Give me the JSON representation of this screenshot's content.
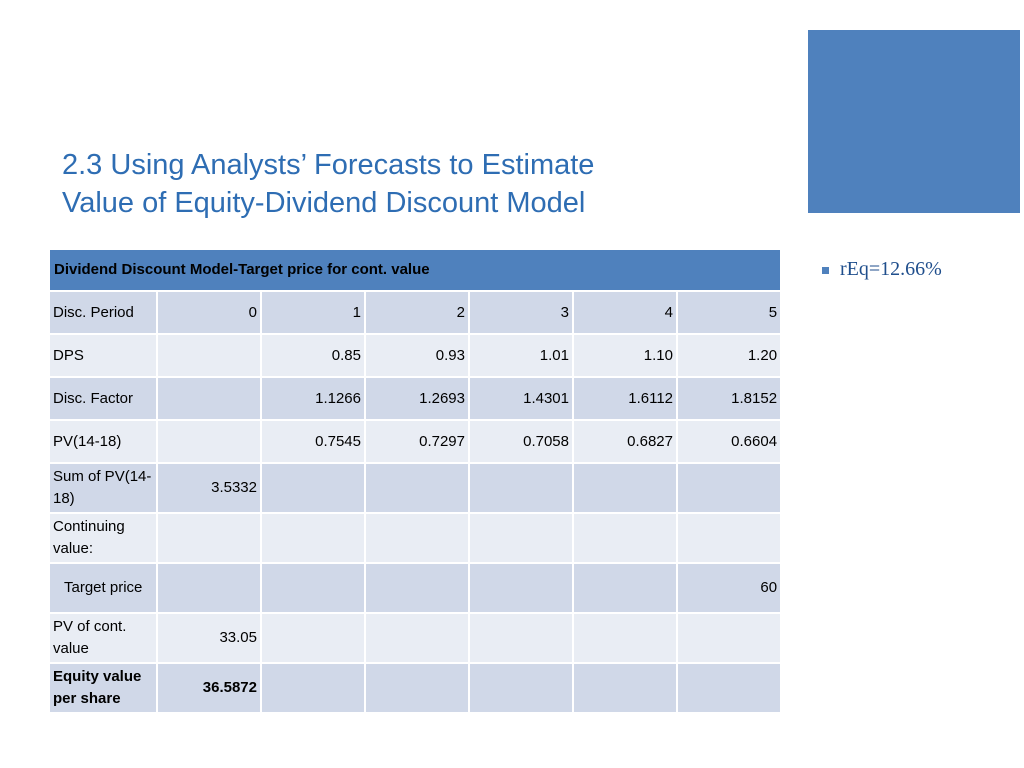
{
  "slide": {
    "title_line1": "2.3 Using Analysts’ Forecasts to Estimate",
    "title_line2": "Value of Equity-Dividend Discount Model",
    "bullet": "rEq=12.66%",
    "accent_color": "#4f81bd"
  },
  "table": {
    "header": "Dividend Discount Model-Target price for cont. value",
    "rows": [
      {
        "label": "Disc. Period",
        "cells": [
          "0",
          "1",
          "2",
          "3",
          "4",
          "5"
        ]
      },
      {
        "label": "DPS",
        "cells": [
          "",
          "0.85",
          "0.93",
          "1.01",
          "1.10",
          "1.20"
        ]
      },
      {
        "label": "Disc. Factor",
        "cells": [
          "",
          "1.1266",
          "1.2693",
          "1.4301",
          "1.6112",
          "1.8152"
        ]
      },
      {
        "label": "PV(14-18)",
        "cells": [
          "",
          "0.7545",
          "0.7297",
          "0.7058",
          "0.6827",
          "0.6604"
        ]
      },
      {
        "label": "Sum of PV(14-18)",
        "cells": [
          "3.5332",
          "",
          "",
          "",
          "",
          ""
        ]
      },
      {
        "label": "Continuing value:",
        "cells": [
          "",
          "",
          "",
          "",
          "",
          ""
        ]
      },
      {
        "label": "Target price",
        "cells": [
          "",
          "",
          "",
          "",
          "",
          "60"
        ]
      },
      {
        "label": "PV of cont. value",
        "cells": [
          "33.05",
          "",
          "",
          "",
          "",
          ""
        ]
      },
      {
        "label": "Equity value per share",
        "cells": [
          "36.5872",
          "",
          "",
          "",
          "",
          ""
        ]
      }
    ]
  }
}
